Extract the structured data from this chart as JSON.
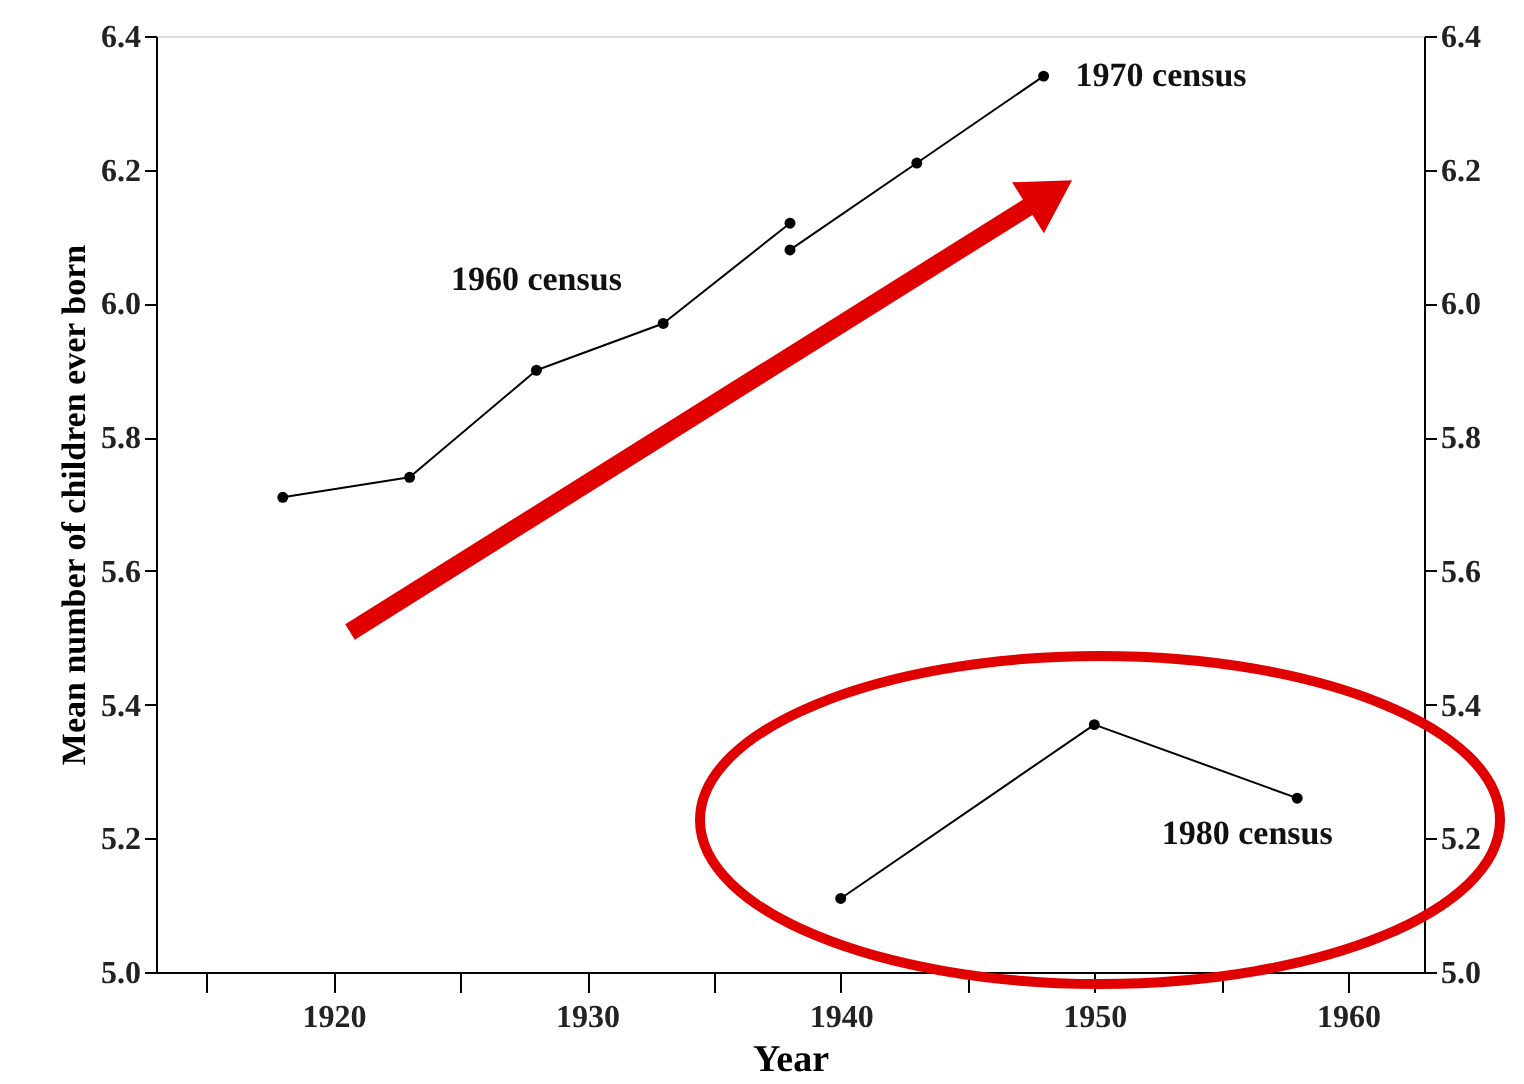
{
  "chart_data": {
    "type": "line",
    "xlabel": "Year",
    "ylabel": "Mean number of children ever born",
    "xlim": [
      1913,
      1963
    ],
    "xticks": [
      {
        "value": 1915,
        "label": null
      },
      1920,
      {
        "value": 1925,
        "label": null
      },
      1930,
      {
        "value": 1935,
        "label": null
      },
      1940,
      {
        "value": 1945,
        "label": null
      },
      1950,
      {
        "value": 1955,
        "label": null
      },
      1960
    ],
    "ylim": [
      5.0,
      6.4
    ],
    "yticks": [
      {
        "value": 5.0,
        "label": "5.0"
      },
      5.2,
      5.4,
      5.6,
      5.8,
      {
        "value": 6.0,
        "label": "6.0"
      },
      6.2,
      6.4
    ],
    "y2lim": [
      5.0,
      6.4
    ],
    "y2ticks": [
      {
        "value": 5.0,
        "label": "5.0"
      },
      5.2,
      5.4,
      5.6,
      5.8,
      {
        "value": 6.0,
        "label": "6.0"
      },
      6.2,
      6.4
    ],
    "grid": false,
    "marker": "circle",
    "line_style": "solid",
    "series": [
      {
        "name": "1960 census",
        "color": "#000000",
        "x": [
          1918,
          1923,
          1928,
          1933,
          1938
        ],
        "values": [
          5.71,
          5.74,
          5.9,
          5.97,
          6.12
        ]
      },
      {
        "name": "1970 census",
        "color": "#000000",
        "x": [
          1938,
          1943,
          1948
        ],
        "values": [
          6.08,
          6.21,
          6.34
        ]
      },
      {
        "name": "1980 census",
        "color": "#000000",
        "x": [
          1940,
          1950,
          1958
        ],
        "values": [
          5.11,
          5.37,
          5.26
        ]
      }
    ]
  }
}
